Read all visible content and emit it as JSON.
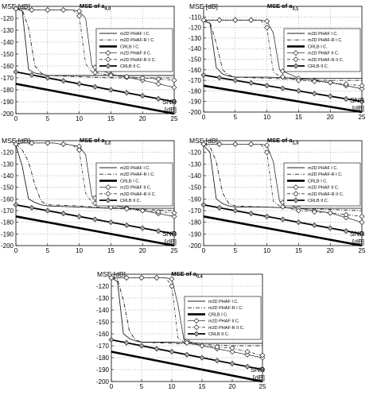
{
  "figure": {
    "charts": [
      {
        "title": "MSE of a",
        "title_sub": "4,0",
        "ylabel": "MSE [dB]",
        "xlabel_line1": "SNR",
        "xlabel_line2": "[dB]",
        "legend_show": true
      },
      {
        "title": "MSE of a",
        "title_sub": "3,1",
        "ylabel": "MSE [dB]",
        "xlabel_line1": "SNR",
        "xlabel_line2": "[dB]",
        "legend_show": true
      },
      {
        "title": "MSE of a",
        "title_sub": "2,2",
        "ylabel": "MSE [dB]",
        "xlabel_line1": "SNR",
        "xlabel_line2": "[dB]",
        "legend_show": true
      },
      {
        "title": "MSE of a",
        "title_sub": "1,3",
        "ylabel": "MSE [dB]",
        "xlabel_line1": "SNR",
        "xlabel_line2": "[dB]",
        "legend_show": true
      },
      {
        "title": "MSE of a",
        "title_sub": "0,4",
        "ylabel": "MSE [dB]",
        "xlabel_line1": "SNR",
        "xlabel_line2": "[dB]",
        "legend_show": true
      }
    ]
  },
  "chart_data": [
    {
      "type": "line",
      "title": "MSE of a4,0",
      "xlabel": "SNR [dB]",
      "ylabel": "MSE [dB]",
      "xlim": [
        0,
        25
      ],
      "ylim": [
        -200,
        -110
      ],
      "xticks": [
        0,
        5,
        10,
        15,
        20,
        25
      ],
      "yticks": [
        -110,
        -120,
        -130,
        -140,
        -150,
        -160,
        -170,
        -180,
        -190,
        -200
      ],
      "grid": true,
      "legend_position": "top-right",
      "series": [
        {
          "name": "m2D PHAF I C.",
          "x": [
            0,
            1,
            2,
            3,
            4,
            5,
            10,
            15,
            20,
            25
          ],
          "y": [
            -112,
            -114,
            -163,
            -166,
            -167,
            -168,
            -168,
            -168,
            -168,
            -168
          ]
        },
        {
          "name": "m2D PHAF-R I C.",
          "x": [
            0,
            1,
            2,
            3,
            4,
            5,
            10,
            15,
            20,
            25
          ],
          "y": [
            -112,
            -113,
            -128,
            -160,
            -166,
            -168,
            -169,
            -170,
            -170,
            -170
          ]
        },
        {
          "name": "CRLB I C.",
          "x": [
            0,
            25
          ],
          "y": [
            -175,
            -200
          ]
        },
        {
          "name": "m2D PHAF II C.",
          "x": [
            0,
            1,
            2,
            3,
            4,
            5,
            6,
            7,
            8,
            9,
            10,
            11,
            12,
            15,
            20,
            25
          ],
          "y": [
            -112,
            -112,
            -113,
            -113,
            -113,
            -113,
            -113,
            -113,
            -113,
            -113,
            -114,
            -120,
            -160,
            -167,
            -172,
            -178
          ]
        },
        {
          "name": "m2D PHAF-R II C.",
          "x": [
            0,
            1,
            2,
            3,
            4,
            5,
            6,
            7,
            8,
            9,
            10,
            11,
            12,
            15,
            20,
            25
          ],
          "y": [
            -112,
            -112,
            -113,
            -113,
            -113,
            -113,
            -113,
            -113,
            -113,
            -113,
            -118,
            -158,
            -165,
            -168,
            -170,
            -172
          ]
        },
        {
          "name": "CRLB II C.",
          "x": [
            0,
            25
          ],
          "y": [
            -165,
            -190
          ]
        }
      ]
    },
    {
      "type": "line",
      "title": "MSE of a3,1",
      "xlabel": "SNR [dB]",
      "ylabel": "MSE [dB]",
      "xlim": [
        0,
        25
      ],
      "ylim": [
        -200,
        -100
      ],
      "xticks": [
        0,
        5,
        10,
        15,
        20,
        25
      ],
      "yticks": [
        -100,
        -110,
        -120,
        -130,
        -140,
        -150,
        -160,
        -170,
        -180,
        -190,
        -200
      ],
      "grid": true,
      "legend_position": "top-right",
      "series": [
        {
          "name": "m2D PHAF I C.",
          "x": [
            0,
            1,
            2,
            3,
            4,
            5,
            10,
            15,
            20,
            25
          ],
          "y": [
            -114,
            -116,
            -158,
            -164,
            -166,
            -167,
            -167,
            -168,
            -168,
            -168
          ]
        },
        {
          "name": "m2D PHAF-R I C.",
          "x": [
            0,
            1,
            2,
            3,
            4,
            5,
            10,
            15,
            20,
            25
          ],
          "y": [
            -113,
            -115,
            -135,
            -160,
            -165,
            -167,
            -168,
            -169,
            -170,
            -170
          ]
        },
        {
          "name": "CRLB I C.",
          "x": [
            0,
            25
          ],
          "y": [
            -175,
            -200
          ]
        },
        {
          "name": "m2D PHAF II C.",
          "x": [
            0,
            1,
            2,
            3,
            4,
            5,
            6,
            7,
            8,
            9,
            10,
            11,
            12,
            15,
            20,
            25
          ],
          "y": [
            -113,
            -113,
            -113,
            -113,
            -113,
            -113,
            -113,
            -113,
            -113,
            -113,
            -114,
            -125,
            -160,
            -168,
            -172,
            -178
          ]
        },
        {
          "name": "m2D PHAF-R II C.",
          "x": [
            0,
            1,
            2,
            3,
            4,
            5,
            6,
            7,
            8,
            9,
            10,
            11,
            12,
            15,
            20,
            25
          ],
          "y": [
            -113,
            -113,
            -113,
            -113,
            -113,
            -113,
            -113,
            -113,
            -113,
            -113,
            -120,
            -162,
            -166,
            -170,
            -172,
            -175
          ]
        },
        {
          "name": "CRLB II C.",
          "x": [
            0,
            25
          ],
          "y": [
            -165,
            -190
          ]
        }
      ]
    },
    {
      "type": "line",
      "title": "MSE of a2,2",
      "xlabel": "SNR [dB]",
      "ylabel": "MSE [dB]",
      "xlim": [
        0,
        25
      ],
      "ylim": [
        -200,
        -110
      ],
      "xticks": [
        0,
        5,
        10,
        15,
        20,
        25
      ],
      "yticks": [
        -110,
        -120,
        -130,
        -140,
        -150,
        -160,
        -170,
        -180,
        -190,
        -200
      ],
      "grid": true,
      "legend_position": "top-right",
      "series": [
        {
          "name": "m2D PHAF I C.",
          "x": [
            0,
            1,
            2,
            3,
            4,
            5,
            10,
            15,
            20,
            25
          ],
          "y": [
            -114,
            -132,
            -160,
            -163,
            -165,
            -166,
            -167,
            -168,
            -168,
            -168
          ]
        },
        {
          "name": "m2D PHAF-R I C.",
          "x": [
            0,
            1,
            2,
            3,
            4,
            5,
            10,
            15,
            20,
            25
          ],
          "y": [
            -113,
            -118,
            -128,
            -148,
            -162,
            -165,
            -166,
            -168,
            -169,
            -170
          ]
        },
        {
          "name": "CRLB I C.",
          "x": [
            0,
            25
          ],
          "y": [
            -175,
            -200
          ]
        },
        {
          "name": "m2D PHAF II C.",
          "x": [
            0,
            1,
            2,
            3,
            4,
            5,
            6,
            7,
            8,
            9,
            10,
            11,
            12,
            15,
            20,
            25
          ],
          "y": [
            -113,
            -112,
            -112,
            -112,
            -112,
            -112,
            -112,
            -113,
            -113,
            -114,
            -115,
            -122,
            -158,
            -165,
            -170,
            -175
          ]
        },
        {
          "name": "m2D PHAF-R II C.",
          "x": [
            0,
            1,
            2,
            3,
            4,
            5,
            6,
            7,
            8,
            9,
            10,
            11,
            12,
            15,
            20,
            25
          ],
          "y": [
            -113,
            -112,
            -112,
            -112,
            -112,
            -112,
            -112,
            -113,
            -113,
            -114,
            -118,
            -155,
            -163,
            -167,
            -170,
            -172
          ]
        },
        {
          "name": "CRLB II C.",
          "x": [
            0,
            25
          ],
          "y": [
            -165,
            -190
          ]
        }
      ]
    },
    {
      "type": "line",
      "title": "MSE of a1,3",
      "xlabel": "SNR [dB]",
      "ylabel": "MSE [dB]",
      "xlim": [
        0,
        25
      ],
      "ylim": [
        -200,
        -110
      ],
      "xticks": [
        0,
        5,
        10,
        15,
        20,
        25
      ],
      "yticks": [
        -110,
        -120,
        -130,
        -140,
        -150,
        -160,
        -170,
        -180,
        -190,
        -200
      ],
      "grid": true,
      "legend_position": "top-right",
      "series": [
        {
          "name": "m2D PHAF I C.",
          "x": [
            0,
            1,
            2,
            3,
            4,
            5,
            10,
            15,
            20,
            25
          ],
          "y": [
            -114,
            -120,
            -160,
            -164,
            -166,
            -167,
            -167,
            -168,
            -168,
            -168
          ]
        },
        {
          "name": "m2D PHAF-R I C.",
          "x": [
            0,
            1,
            2,
            3,
            4,
            5,
            10,
            15,
            20,
            25
          ],
          "y": [
            -113,
            -115,
            -128,
            -155,
            -164,
            -166,
            -167,
            -168,
            -169,
            -170
          ]
        },
        {
          "name": "CRLB I C.",
          "x": [
            0,
            25
          ],
          "y": [
            -175,
            -200
          ]
        },
        {
          "name": "m2D PHAF II C.",
          "x": [
            0,
            1,
            2,
            3,
            4,
            5,
            6,
            7,
            8,
            9,
            10,
            11,
            12,
            15,
            20,
            25
          ],
          "y": [
            -113,
            -113,
            -113,
            -113,
            -113,
            -113,
            -113,
            -113,
            -113,
            -113,
            -114,
            -128,
            -162,
            -168,
            -172,
            -180
          ]
        },
        {
          "name": "m2D PHAF-R II C.",
          "x": [
            0,
            1,
            2,
            3,
            4,
            5,
            6,
            7,
            8,
            9,
            10,
            11,
            12,
            15,
            20,
            25
          ],
          "y": [
            -113,
            -113,
            -113,
            -113,
            -113,
            -113,
            -113,
            -113,
            -113,
            -113,
            -120,
            -162,
            -166,
            -170,
            -172,
            -175
          ]
        },
        {
          "name": "CRLB II C.",
          "x": [
            0,
            25
          ],
          "y": [
            -165,
            -190
          ]
        }
      ]
    },
    {
      "type": "line",
      "title": "MSE of a0,4",
      "xlabel": "SNR [dB]",
      "ylabel": "MSE [dB]",
      "xlim": [
        0,
        25
      ],
      "ylim": [
        -200,
        -110
      ],
      "xticks": [
        0,
        5,
        10,
        15,
        20,
        25
      ],
      "yticks": [
        -110,
        -120,
        -130,
        -140,
        -150,
        -160,
        -170,
        -180,
        -190,
        -200
      ],
      "grid": true,
      "legend_position": "top-right",
      "series": [
        {
          "name": "m2D PHAF I C.",
          "x": [
            0,
            1,
            2,
            3,
            4,
            5,
            10,
            15,
            20,
            25
          ],
          "y": [
            -113,
            -116,
            -160,
            -164,
            -166,
            -167,
            -167,
            -168,
            -168,
            -168
          ]
        },
        {
          "name": "m2D PHAF-R I C.",
          "x": [
            0,
            1,
            2,
            3,
            4,
            5,
            10,
            15,
            20,
            25
          ],
          "y": [
            -113,
            -114,
            -132,
            -158,
            -165,
            -167,
            -168,
            -169,
            -170,
            -170
          ]
        },
        {
          "name": "CRLB I C.",
          "x": [
            0,
            25
          ],
          "y": [
            -175,
            -200
          ]
        },
        {
          "name": "m2D PHAF II C.",
          "x": [
            0,
            1,
            2,
            3,
            4,
            5,
            6,
            7,
            8,
            9,
            10,
            11,
            12,
            15,
            20,
            25
          ],
          "y": [
            -113,
            -113,
            -113,
            -113,
            -113,
            -113,
            -113,
            -113,
            -113,
            -113,
            -114,
            -135,
            -165,
            -170,
            -175,
            -180
          ]
        },
        {
          "name": "m2D PHAF-R II C.",
          "x": [
            0,
            1,
            2,
            3,
            4,
            5,
            6,
            7,
            8,
            9,
            10,
            11,
            12,
            15,
            20,
            25
          ],
          "y": [
            -113,
            -113,
            -113,
            -113,
            -113,
            -113,
            -113,
            -113,
            -113,
            -113,
            -120,
            -163,
            -167,
            -170,
            -172,
            -178
          ]
        },
        {
          "name": "CRLB II C.",
          "x": [
            0,
            25
          ],
          "y": [
            -165,
            -190
          ]
        }
      ]
    }
  ]
}
